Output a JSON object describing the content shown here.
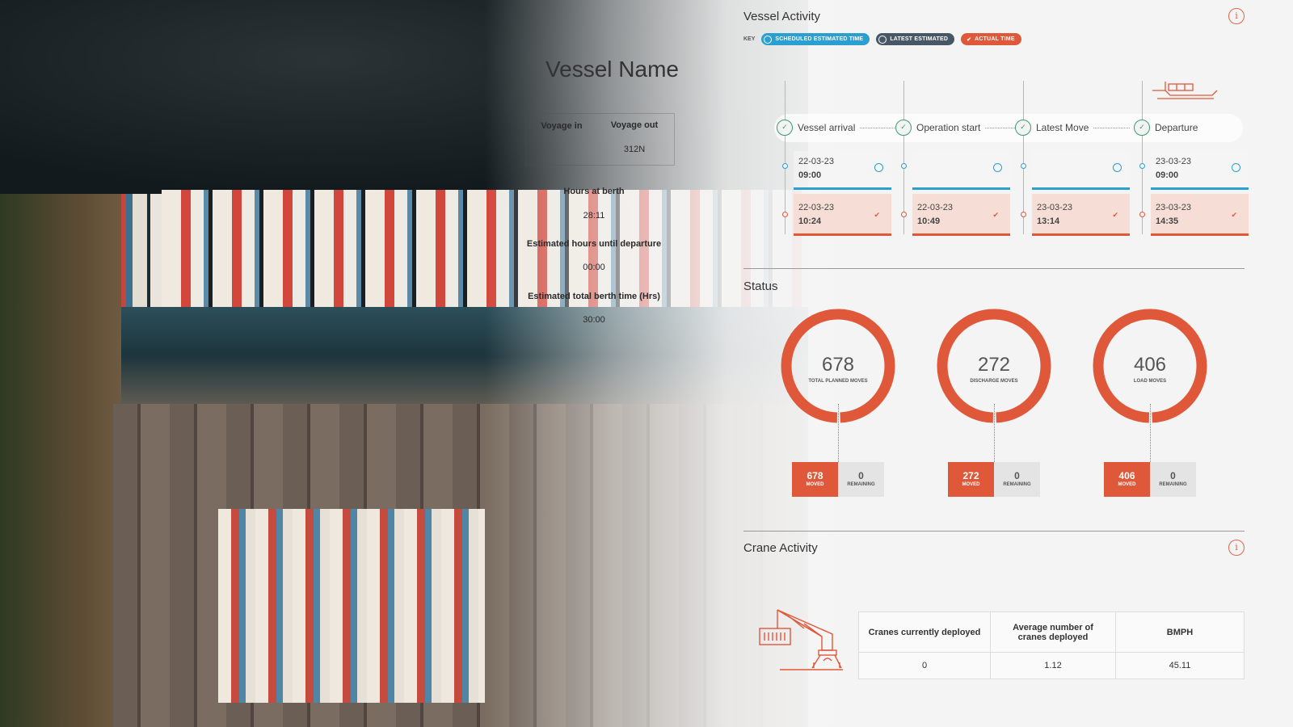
{
  "vessel_panel": {
    "title": "Vessel Name",
    "voyage_in_label": "Voyage in",
    "voyage_out_label": "Voyage out",
    "voyage_out": "312N",
    "hours_at_berth_label": "Hours at berth",
    "hours_at_berth": "28:11",
    "est_hours_departure_label": "Estimated hours until departure",
    "est_hours_departure": "00:00",
    "est_total_berth_label": "Estimated total berth time (Hrs)",
    "est_total_berth": "30:00"
  },
  "vessel_activity": {
    "title": "Vessel Activity",
    "key_label": "KEY",
    "key": [
      {
        "label": "SCHEDULED ESTIMATED TIME",
        "color": "#2a9fd0"
      },
      {
        "label": "LATEST ESTIMATED",
        "color": "#475766"
      },
      {
        "label": "ACTUAL TIME",
        "color": "#e0583a"
      }
    ],
    "steps": [
      {
        "label": "Vessel arrival",
        "scheduled_date": "22-03-23",
        "scheduled_time": "09:00",
        "actual_date": "22-03-23",
        "actual_time": "10:24"
      },
      {
        "label": "Operation start",
        "scheduled_date": "",
        "scheduled_time": "",
        "actual_date": "22-03-23",
        "actual_time": "10:49"
      },
      {
        "label": "Latest Move",
        "scheduled_date": "",
        "scheduled_time": "",
        "actual_date": "23-03-23",
        "actual_time": "13:14"
      },
      {
        "label": "Departure",
        "scheduled_date": "23-03-23",
        "scheduled_time": "09:00",
        "actual_date": "23-03-23",
        "actual_time": "14:35"
      }
    ]
  },
  "status": {
    "title": "Status",
    "accent": "#e0583a",
    "gauges": [
      {
        "value": "678",
        "label": "TOTAL PLANNED MOVES",
        "moved": "678",
        "remaining": "0",
        "progress": 1.0
      },
      {
        "value": "272",
        "label": "DISCHARGE MOVES",
        "moved": "272",
        "remaining": "0",
        "progress": 1.0
      },
      {
        "value": "406",
        "label": "LOAD MOVES",
        "moved": "406",
        "remaining": "0",
        "progress": 1.0
      }
    ],
    "moved_label": "MOVED",
    "remaining_label": "REMAINING"
  },
  "crane_activity": {
    "title": "Crane Activity",
    "headers": [
      "Cranes currently deployed",
      "Average number of cranes deployed",
      "BMPH"
    ],
    "values": [
      "0",
      "1.12",
      "45.11"
    ]
  }
}
